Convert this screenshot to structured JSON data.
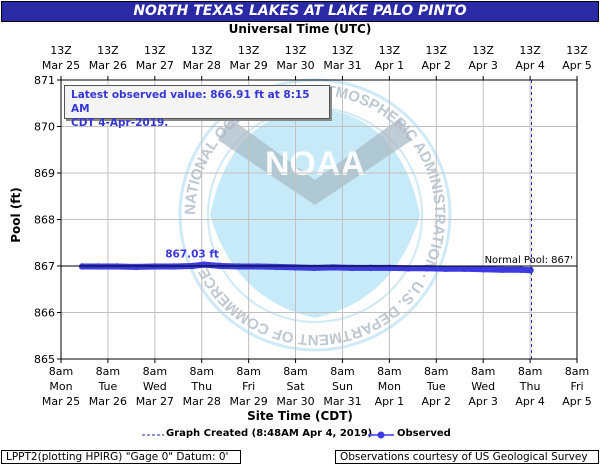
{
  "header": {
    "title": "NORTH TEXAS LAKES AT LAKE PALO PINTO",
    "utc_axis_title": "Universal Time (UTC)",
    "site_axis_title": "Site Time (CDT)",
    "ylabel": "Pool (ft)"
  },
  "latest": {
    "line1": "Latest observed value: 866.91 ft at 8:15 AM",
    "line2": "CDT 4-Apr-2019."
  },
  "annotations": {
    "peak_label": "867.03 ft",
    "normal_pool_label": "Normal Pool: 867'"
  },
  "legend": {
    "graph_created": "Graph Created (8:48AM Apr 4, 2019)",
    "observed": "Observed"
  },
  "footer": {
    "left": "LPPT2(plotting HPIRG) \"Gage 0\" Datum: 0'",
    "right": "Observations courtesy of US Geological Survey"
  },
  "watermark": {
    "center_text": "NOAA",
    "ring_text": "NATIONAL OCEANIC AND ATMOSPHERIC ADMINISTRATION · U.S. DEPARTMENT OF COMMERCE"
  },
  "colors": {
    "title_bar": "#2a2aa6",
    "observed": "#3a3ae0",
    "graph_created_line": "#2a2aa6",
    "grid": "#c0c0c0",
    "watermark": "#b8e3f5"
  },
  "chart_data": {
    "type": "line",
    "ylim": [
      865,
      871
    ],
    "yticks": [
      "865",
      "866",
      "867",
      "868",
      "869",
      "870",
      "871"
    ],
    "grid": true,
    "top_axis_ticks": [
      {
        "hour": "13Z",
        "date": "Mar 25"
      },
      {
        "hour": "13Z",
        "date": "Mar 26"
      },
      {
        "hour": "13Z",
        "date": "Mar 27"
      },
      {
        "hour": "13Z",
        "date": "Mar 28"
      },
      {
        "hour": "13Z",
        "date": "Mar 29"
      },
      {
        "hour": "13Z",
        "date": "Mar 30"
      },
      {
        "hour": "13Z",
        "date": "Mar 31"
      },
      {
        "hour": "13Z",
        "date": "Apr 1"
      },
      {
        "hour": "13Z",
        "date": "Apr 2"
      },
      {
        "hour": "13Z",
        "date": "Apr 3"
      },
      {
        "hour": "13Z",
        "date": "Apr 4"
      },
      {
        "hour": "13Z",
        "date": "Apr 5"
      }
    ],
    "bottom_axis_ticks": [
      {
        "time": "8am",
        "day": "Mon",
        "date": "Mar 25"
      },
      {
        "time": "8am",
        "day": "Tue",
        "date": "Mar 26"
      },
      {
        "time": "8am",
        "day": "Wed",
        "date": "Mar 27"
      },
      {
        "time": "8am",
        "day": "Thu",
        "date": "Mar 28"
      },
      {
        "time": "8am",
        "day": "Fri",
        "date": "Mar 29"
      },
      {
        "time": "8am",
        "day": "Sat",
        "date": "Mar 30"
      },
      {
        "time": "8am",
        "day": "Sun",
        "date": "Mar 31"
      },
      {
        "time": "8am",
        "day": "Mon",
        "date": "Apr 1"
      },
      {
        "time": "8am",
        "day": "Tue",
        "date": "Apr 2"
      },
      {
        "time": "8am",
        "day": "Wed",
        "date": "Apr 3"
      },
      {
        "time": "8am",
        "day": "Thu",
        "date": "Apr 4"
      },
      {
        "time": "8am",
        "day": "Fri",
        "date": "Apr 5"
      }
    ],
    "normal_pool": 867,
    "graph_created_day": 10.03,
    "peak": {
      "day": 3.05,
      "value": 867.03
    },
    "series": [
      {
        "name": "Observed",
        "points": [
          [
            0.45,
            866.99
          ],
          [
            0.8,
            866.99
          ],
          [
            1.2,
            866.99
          ],
          [
            1.6,
            866.98
          ],
          [
            2.0,
            866.99
          ],
          [
            2.4,
            866.99
          ],
          [
            2.8,
            867.0
          ],
          [
            3.05,
            867.03
          ],
          [
            3.4,
            867.0
          ],
          [
            3.8,
            866.99
          ],
          [
            4.2,
            866.99
          ],
          [
            4.6,
            866.98
          ],
          [
            5.0,
            866.97
          ],
          [
            5.4,
            866.96
          ],
          [
            5.8,
            866.97
          ],
          [
            6.2,
            866.96
          ],
          [
            6.6,
            866.96
          ],
          [
            7.0,
            866.96
          ],
          [
            7.4,
            866.95
          ],
          [
            7.8,
            866.95
          ],
          [
            8.2,
            866.94
          ],
          [
            8.6,
            866.94
          ],
          [
            9.0,
            866.93
          ],
          [
            9.4,
            866.92
          ],
          [
            9.8,
            866.92
          ],
          [
            10.01,
            866.91
          ]
        ]
      }
    ]
  }
}
